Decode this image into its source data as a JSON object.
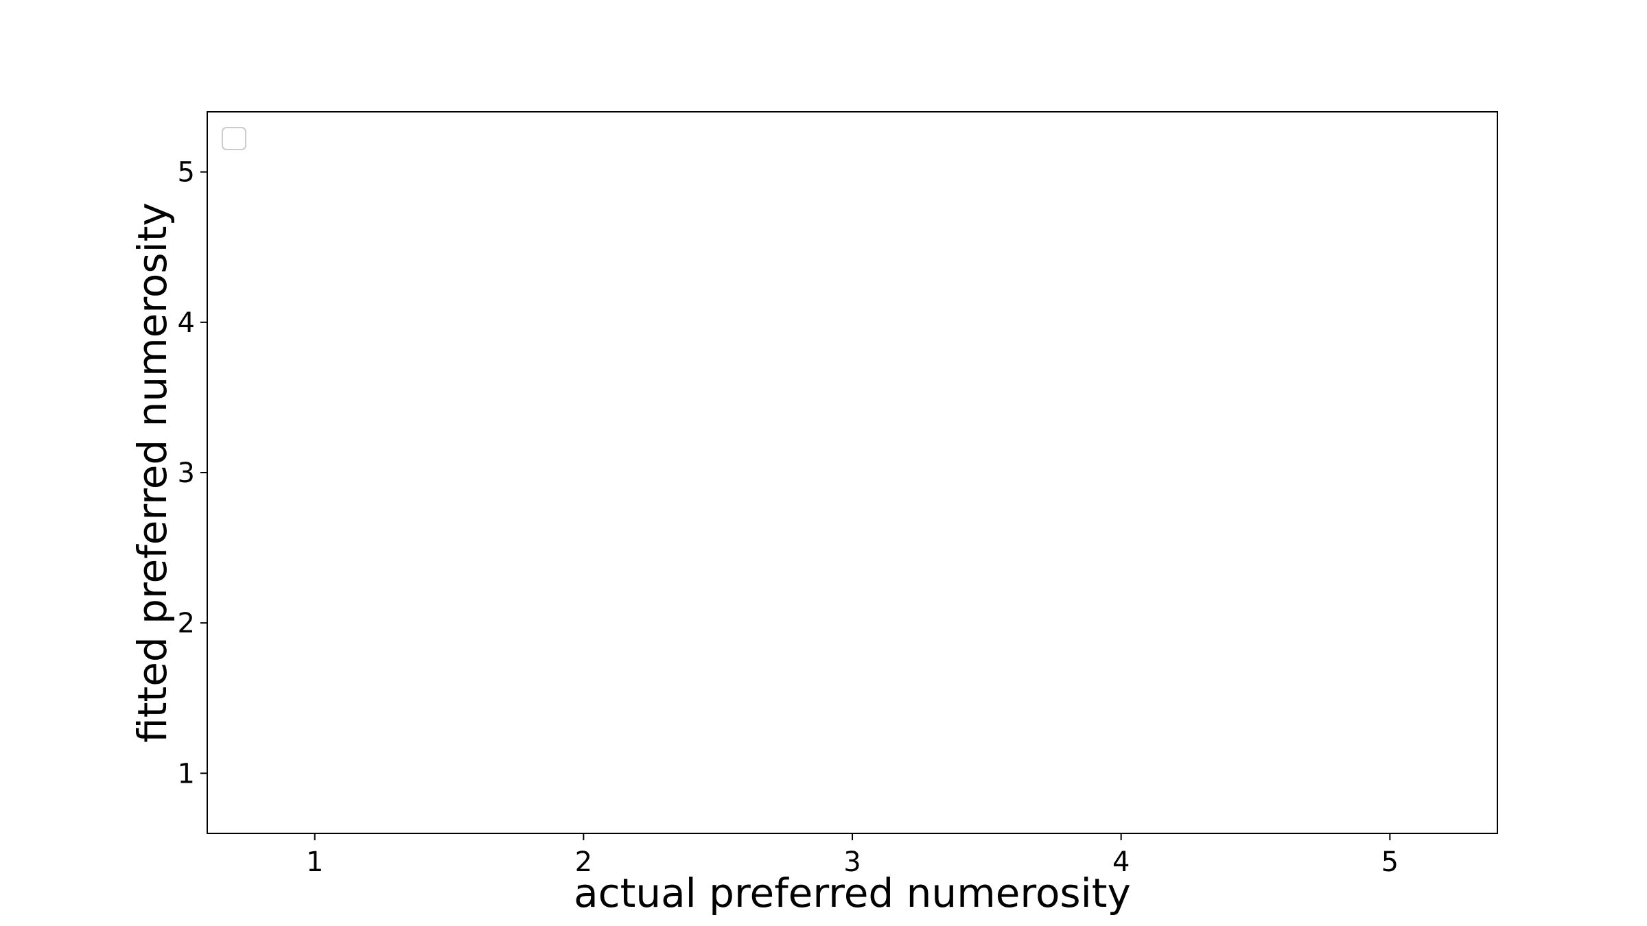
{
  "chart_data": {
    "type": "scatter",
    "title": "",
    "xlabel": "actual preferred numerosity",
    "ylabel": "fitted preferred numerosity",
    "xlim": [
      0.6,
      5.4
    ],
    "ylim": [
      0.6,
      5.4
    ],
    "xticks": [
      "1",
      "2",
      "3",
      "4",
      "5"
    ],
    "yticks": [
      "1",
      "2",
      "3",
      "4",
      "5"
    ],
    "series": [],
    "legend": {
      "placement": "top-left",
      "entries": []
    },
    "grid": false,
    "colors": {
      "axes": "#000000",
      "background": "#ffffff",
      "legend_border": "#cccccc"
    }
  }
}
